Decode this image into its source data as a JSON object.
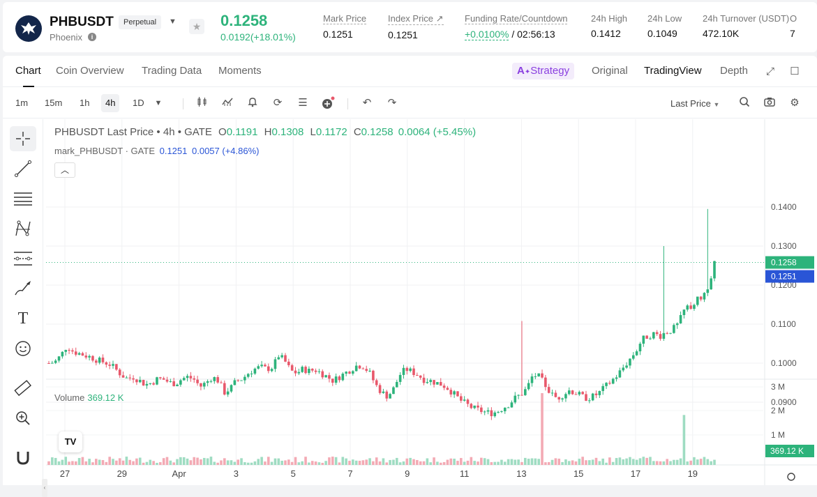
{
  "header": {
    "symbol": "PHBUSDT",
    "badge": "Perpetual",
    "subname": "Phoenix",
    "price": "0.1258",
    "change": "0.0192(+18.01%)",
    "stats": [
      {
        "label": "Mark Price",
        "value": "0.1251"
      },
      {
        "label": "Index Price ↗",
        "value": "0.1251"
      },
      {
        "label": "Funding Rate/Countdown",
        "value_green": "+0.0100%",
        "value_rest": " / 02:56:13"
      },
      {
        "label": "24h High",
        "value": "0.1412"
      },
      {
        "label": "24h Low",
        "value": "0.1049"
      },
      {
        "label": "24h Turnover (USDT)",
        "value": "472.10K"
      },
      {
        "label": "O",
        "value": "7"
      }
    ]
  },
  "tabs": [
    "Chart",
    "Coin Overview",
    "Trading Data",
    "Moments"
  ],
  "views": {
    "strategy": "Strategy",
    "original": "Original",
    "tradingview": "TradingView",
    "depth": "Depth"
  },
  "timeframes": [
    "1m",
    "15m",
    "1h",
    "4h",
    "1D"
  ],
  "active_timeframe": "4h",
  "price_type": "Last Price",
  "legend": {
    "title": "PHBUSDT Last Price • 4h • GATE",
    "o_label": "O",
    "o": "0.1191",
    "h_label": "H",
    "h": "0.1308",
    "l_label": "L",
    "l": "0.1172",
    "c_label": "C",
    "c": "0.1258",
    "chg": "0.0064 (+5.45%)",
    "mark": "mark_PHBUSDT · GATE",
    "mark_val": "0.1251",
    "mark_chg": "0.0057 (+4.86%)"
  },
  "volume": {
    "label": "Volume",
    "value": "369.12 K"
  },
  "colors": {
    "up": "#2db37b",
    "down": "#e8586b",
    "mark": "#2a55d6"
  },
  "chart_data": {
    "type": "candlestick",
    "price_axis": [
      "0.1400",
      "0.1300",
      "0.1200",
      "0.1100",
      "0.1000",
      "0.0900"
    ],
    "volume_axis": [
      "3 M",
      "2 M",
      "1 M"
    ],
    "x_ticks": [
      "27",
      "29",
      "Apr",
      "3",
      "5",
      "7",
      "9",
      "11",
      "13",
      "15",
      "17",
      "19"
    ],
    "last_price_label": "0.1258",
    "mark_price_label": "0.1251",
    "volume_label": "369.12 K",
    "close_path": [
      0.1,
      0.1003,
      0.102,
      0.1045,
      0.103,
      0.1025,
      0.102,
      0.1015,
      0.1008,
      0.1003,
      0.0998,
      0.0985,
      0.097,
      0.096,
      0.0965,
      0.0955,
      0.0945,
      0.095,
      0.096,
      0.0958,
      0.095,
      0.0948,
      0.096,
      0.0965,
      0.0958,
      0.094,
      0.095,
      0.0965,
      0.0955,
      0.0925,
      0.0935,
      0.0955,
      0.096,
      0.0975,
      0.0985,
      0.099,
      0.0985,
      0.099,
      0.102,
      0.1005,
      0.098,
      0.0975,
      0.0985,
      0.098,
      0.0983,
      0.0975,
      0.0965,
      0.0955,
      0.0965,
      0.0975,
      0.0985,
      0.0995,
      0.0992,
      0.0975,
      0.0945,
      0.0925,
      0.0915,
      0.0935,
      0.097,
      0.0985,
      0.0978,
      0.097,
      0.0958,
      0.0955,
      0.095,
      0.0945,
      0.0935,
      0.092,
      0.0905,
      0.0895,
      0.0885,
      0.088,
      0.0875,
      0.0872,
      0.0875,
      0.0885,
      0.0895,
      0.091,
      0.092,
      0.0935,
      0.097,
      0.0965,
      0.0945,
      0.092,
      0.091,
      0.092,
      0.093,
      0.0925,
      0.0915,
      0.091,
      0.0915,
      0.0925,
      0.094,
      0.0955,
      0.097,
      0.099,
      0.101,
      0.103,
      0.106,
      0.107,
      0.1075,
      0.107,
      0.108,
      0.1085,
      0.11,
      0.1135,
      0.1145,
      0.116,
      0.117,
      0.12,
      0.1258
    ]
  }
}
